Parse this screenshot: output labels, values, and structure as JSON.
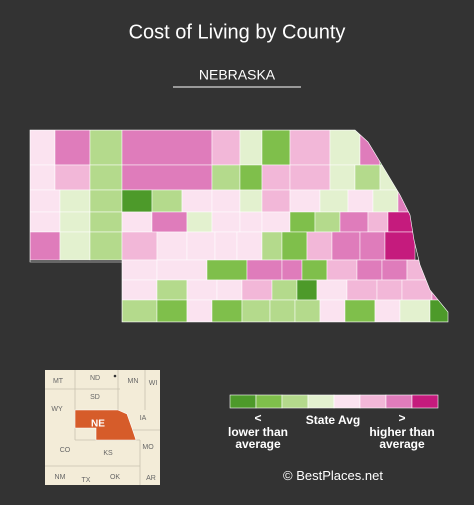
{
  "title": "Cost of Living by County",
  "subtitle": "NEBRASKA",
  "legend": {
    "colors": [
      "#4d9a2a",
      "#7fbf4b",
      "#b4da8c",
      "#e3f1cf",
      "#fbe3f0",
      "#f2b7d8",
      "#df7cbb",
      "#c51b7d"
    ],
    "lower_symbol": "<",
    "lower_label": "lower than average",
    "middle_label": "State Avg",
    "higher_symbol": ">",
    "higher_label": "higher than average"
  },
  "inset": {
    "states": [
      "MT",
      "ND",
      "SD",
      "MN",
      "WI",
      "WY",
      "NE",
      "IA",
      "CO",
      "KS",
      "MO",
      "NM",
      "TX",
      "OK",
      "AR"
    ]
  },
  "credit": "© BestPlaces.net"
}
